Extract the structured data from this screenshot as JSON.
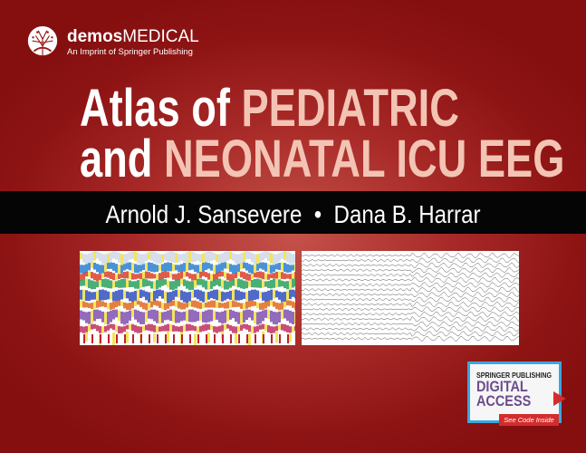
{
  "publisher": {
    "brand_bold": "demos",
    "brand_light": "MEDICAL",
    "imprint": "An Imprint of Springer Publishing"
  },
  "title": {
    "line1_white": "Atlas of",
    "line1_highlight": "PEDIATRIC",
    "line2_white": "and",
    "line2_highlight": "NEONATAL ICU EEG"
  },
  "authors": {
    "author1": "Arnold J. Sansevere",
    "separator": "•",
    "author2": "Dana B. Harrar"
  },
  "badge": {
    "line1": "SPRINGER PUBLISHING",
    "line2": "DIGITAL",
    "line3": "ACCESS",
    "cta": "See Code Inside"
  },
  "colors": {
    "background": "#a82a28",
    "highlight": "#f3c4b4",
    "band": "#050505",
    "badge_border": "#3aa7e0",
    "badge_text": "#6b4c8c",
    "cta": "#d42c2c"
  }
}
